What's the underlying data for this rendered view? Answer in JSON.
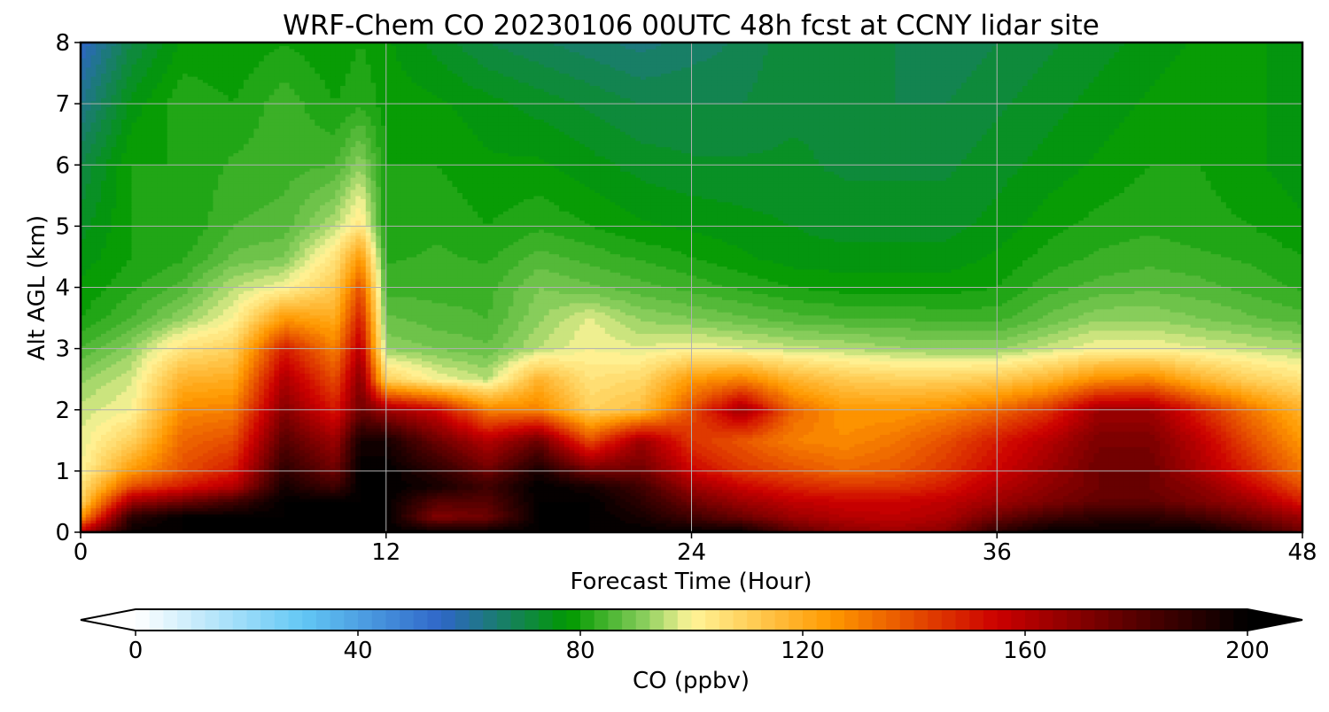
{
  "chart_data": {
    "type": "heatmap",
    "title": "WRF-Chem CO  20230106 00UTC 48h fcst at CCNY lidar site",
    "xlabel": "Forecast Time (Hour)",
    "ylabel": "Alt AGL (km)",
    "xlim": [
      0,
      48
    ],
    "ylim": [
      0,
      8
    ],
    "xticks": [
      0,
      12,
      24,
      36,
      48
    ],
    "yticks": [
      0,
      1,
      2,
      3,
      4,
      5,
      6,
      7,
      8
    ],
    "grid": true,
    "colorbar": {
      "label": "CO  (ppbv)",
      "vmin": 0,
      "vmax": 200,
      "ticks": [
        0,
        40,
        80,
        120,
        160,
        200
      ],
      "extend": "both",
      "colors": [
        "#ffffff",
        "#63c8f5",
        "#2f66c8",
        "#009900",
        "#8fd060",
        "#fff599",
        "#ff9900",
        "#cc0000",
        "#550000",
        "#000000"
      ],
      "color_stops": [
        0,
        30,
        55,
        78,
        92,
        100,
        125,
        155,
        180,
        200
      ]
    },
    "x": [
      0,
      2,
      4,
      6,
      8,
      10,
      11,
      12,
      14,
      16,
      18,
      20,
      22,
      24,
      26,
      28,
      30,
      32,
      34,
      36,
      38,
      40,
      42,
      44,
      46,
      48
    ],
    "y": [
      0,
      0.25,
      0.5,
      0.75,
      1,
      1.5,
      2,
      2.5,
      3,
      3.5,
      4,
      4.5,
      5,
      6,
      7,
      8
    ],
    "z": [
      [
        160,
        200,
        200,
        200,
        200,
        200,
        200,
        200,
        200,
        200,
        200,
        200,
        200,
        200,
        200,
        180,
        170,
        165,
        170,
        190,
        200,
        200,
        200,
        200,
        190,
        175
      ],
      [
        125,
        190,
        200,
        200,
        200,
        200,
        200,
        200,
        170,
        175,
        200,
        200,
        195,
        185,
        175,
        165,
        160,
        158,
        162,
        175,
        185,
        190,
        190,
        185,
        175,
        165
      ],
      [
        110,
        165,
        175,
        185,
        200,
        200,
        200,
        200,
        180,
        180,
        200,
        200,
        190,
        175,
        165,
        158,
        155,
        155,
        158,
        165,
        172,
        178,
        178,
        172,
        165,
        150
      ],
      [
        105,
        140,
        150,
        160,
        195,
        185,
        200,
        200,
        195,
        185,
        200,
        195,
        185,
        165,
        155,
        148,
        145,
        145,
        150,
        160,
        168,
        175,
        175,
        168,
        155,
        140
      ],
      [
        100,
        125,
        140,
        150,
        190,
        175,
        200,
        200,
        190,
        175,
        195,
        175,
        175,
        155,
        145,
        140,
        135,
        138,
        145,
        155,
        165,
        175,
        175,
        162,
        148,
        132
      ],
      [
        98,
        110,
        135,
        140,
        180,
        165,
        195,
        195,
        175,
        160,
        175,
        140,
        165,
        145,
        138,
        130,
        128,
        132,
        140,
        150,
        160,
        172,
        172,
        158,
        140,
        125
      ],
      [
        96,
        100,
        128,
        130,
        170,
        150,
        175,
        165,
        155,
        130,
        130,
        110,
        115,
        140,
        165,
        135,
        125,
        125,
        128,
        135,
        145,
        165,
        165,
        148,
        132,
        118
      ],
      [
        92,
        97,
        118,
        120,
        162,
        140,
        170,
        110,
        100,
        95,
        118,
        105,
        108,
        125,
        130,
        118,
        112,
        110,
        110,
        112,
        118,
        128,
        130,
        118,
        110,
        105
      ],
      [
        85,
        92,
        105,
        110,
        150,
        130,
        160,
        92,
        90,
        88,
        95,
        100,
        98,
        100,
        98,
        96,
        95,
        93,
        92,
        92,
        96,
        100,
        100,
        98,
        96,
        94
      ],
      [
        80,
        85,
        92,
        100,
        125,
        120,
        150,
        88,
        86,
        85,
        92,
        98,
        92,
        90,
        88,
        86,
        85,
        85,
        84,
        84,
        88,
        92,
        92,
        90,
        88,
        86
      ],
      [
        78,
        82,
        86,
        95,
        100,
        112,
        140,
        84,
        84,
        84,
        90,
        88,
        86,
        84,
        82,
        80,
        79,
        79,
        79,
        80,
        84,
        86,
        87,
        86,
        84,
        82
      ],
      [
        76,
        80,
        82,
        88,
        90,
        105,
        125,
        82,
        83,
        82,
        86,
        84,
        82,
        80,
        78,
        76,
        76,
        76,
        76,
        78,
        81,
        83,
        84,
        83,
        82,
        80
      ],
      [
        74,
        80,
        80,
        85,
        86,
        95,
        105,
        80,
        82,
        80,
        82,
        80,
        78,
        77,
        76,
        75,
        74,
        74,
        74,
        76,
        79,
        81,
        82,
        81,
        80,
        78
      ],
      [
        70,
        80,
        80,
        83,
        84,
        85,
        92,
        80,
        80,
        78,
        78,
        76,
        74,
        73,
        73,
        73,
        72,
        72,
        72,
        74,
        76,
        78,
        80,
        80,
        78,
        76
      ],
      [
        62,
        76,
        82,
        80,
        84,
        80,
        82,
        79,
        78,
        76,
        74,
        72,
        70,
        70,
        70,
        72,
        72,
        70,
        70,
        72,
        74,
        76,
        78,
        80,
        78,
        76
      ],
      [
        55,
        70,
        78,
        78,
        80,
        78,
        80,
        78,
        74,
        70,
        68,
        66,
        64,
        66,
        68,
        72,
        72,
        70,
        68,
        70,
        72,
        74,
        76,
        78,
        78,
        76
      ]
    ]
  }
}
